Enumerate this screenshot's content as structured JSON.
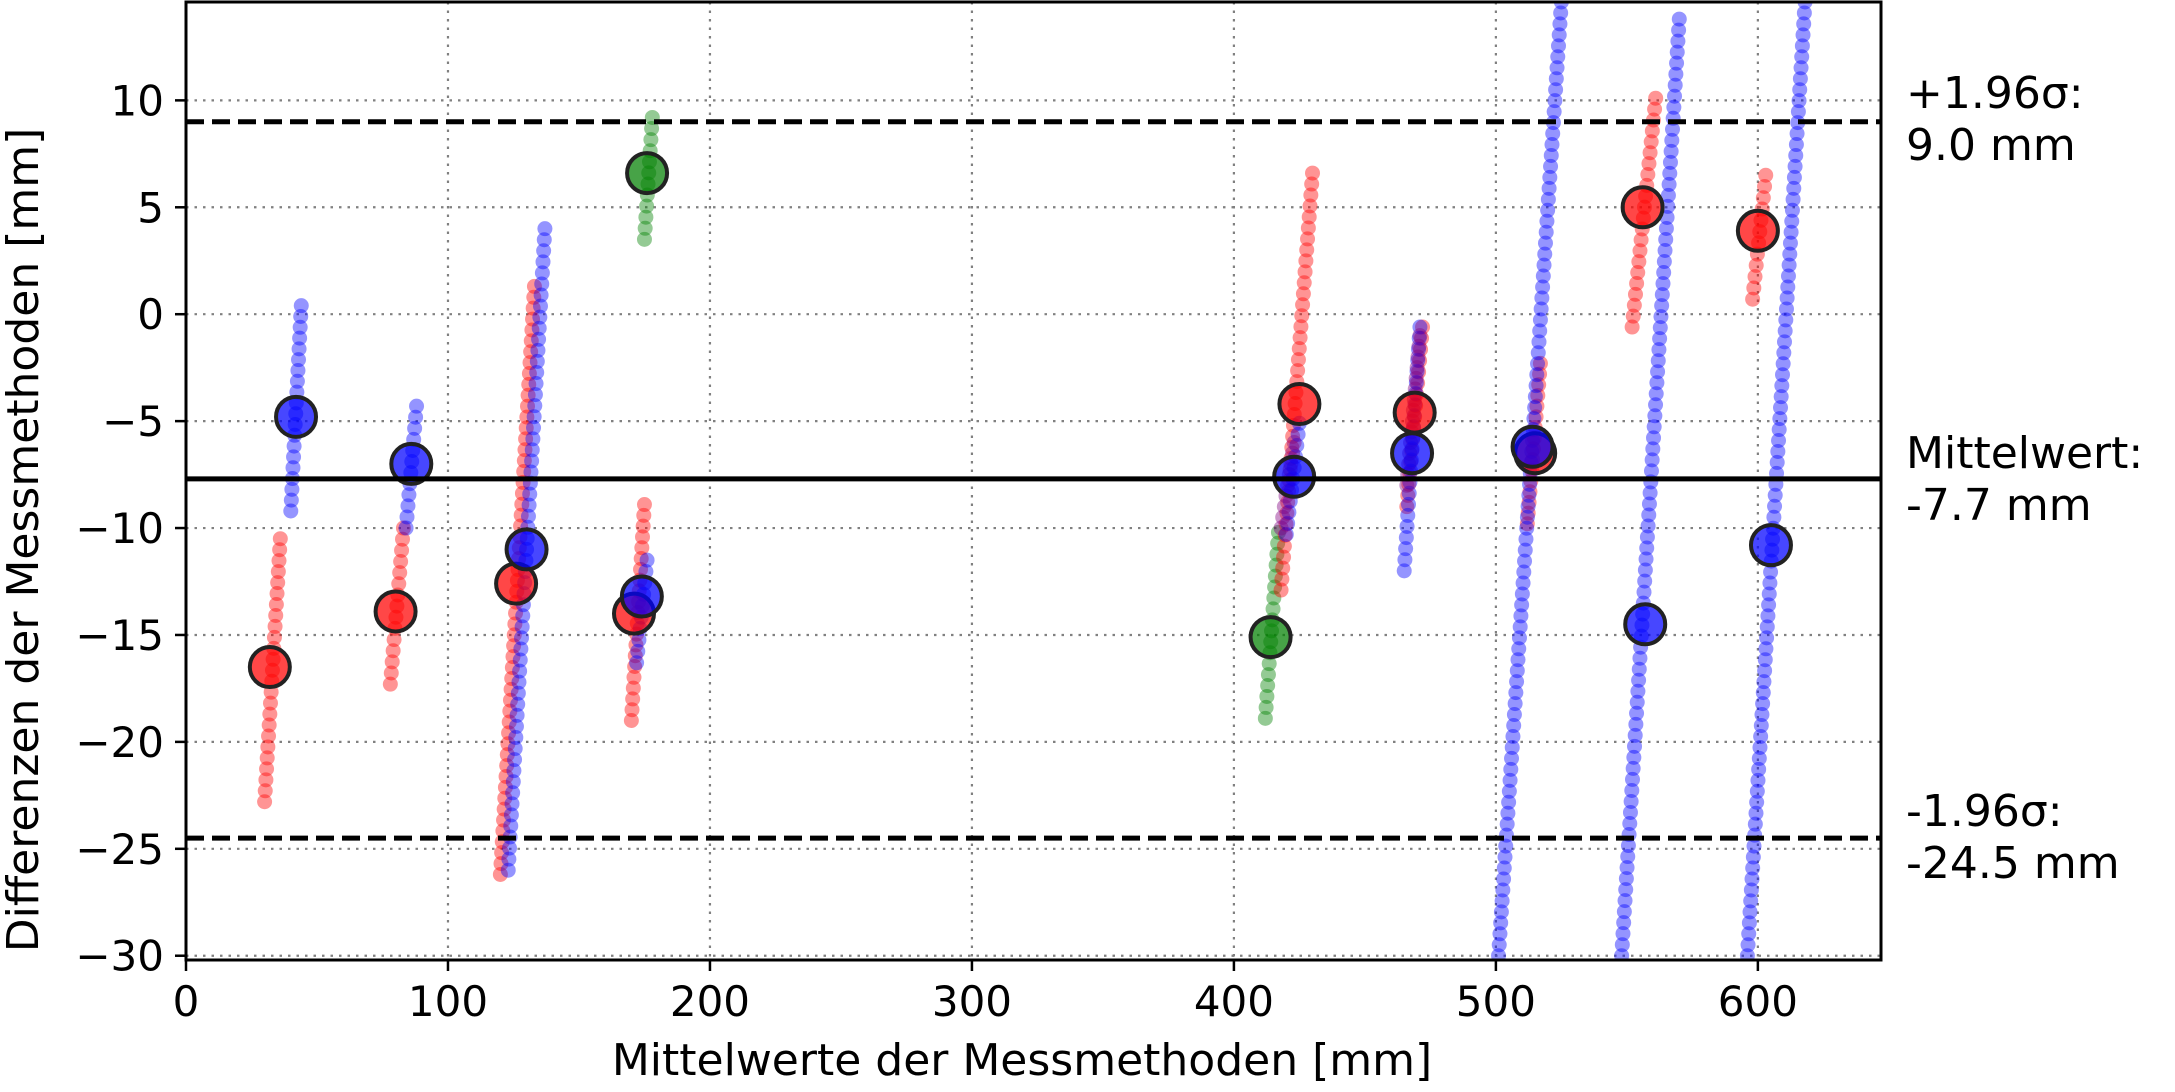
{
  "chart_data": {
    "type": "scatter",
    "title": "",
    "xlabel": "Mittelwerte der Messmethoden [mm]",
    "ylabel": "Differenzen der Messmethoden [mm]",
    "xlim": [
      0,
      647
    ],
    "ylim": [
      -30.2,
      14.6
    ],
    "x_ticks": [
      0,
      100,
      200,
      300,
      400,
      500,
      600
    ],
    "y_ticks": [
      10,
      5,
      0,
      -5,
      -10,
      -15,
      -20,
      -25,
      -30
    ],
    "grid": true,
    "legend": "none",
    "colors": {
      "red": "#ff0000",
      "blue": "#0000ff",
      "green": "#008000",
      "purple": "#800080",
      "line": "#000000",
      "grid": "#808080"
    },
    "reference_lines": {
      "upper": {
        "value": 9.0,
        "label_line1": "+1.96σ:",
        "label_line2": "9.0 mm",
        "style": "dashed"
      },
      "mean": {
        "value": -7.7,
        "label_line1": "Mittelwert:",
        "label_line2": "-7.7 mm",
        "style": "solid"
      },
      "lower": {
        "value": -24.5,
        "label_line1": "-1.96σ:",
        "label_line2": "-24.5 mm",
        "style": "dashed"
      }
    },
    "means": [
      {
        "color": "red",
        "x": 32,
        "y": -16.5
      },
      {
        "color": "blue",
        "x": 42,
        "y": -4.8
      },
      {
        "color": "red",
        "x": 80,
        "y": -13.9
      },
      {
        "color": "blue",
        "x": 86,
        "y": -7.0
      },
      {
        "color": "red",
        "x": 126,
        "y": -12.6
      },
      {
        "color": "blue",
        "x": 130,
        "y": -11.0
      },
      {
        "color": "green",
        "x": 176,
        "y": 6.6
      },
      {
        "color": "red",
        "x": 171,
        "y": -14.0
      },
      {
        "color": "blue",
        "x": 174,
        "y": -13.2
      },
      {
        "color": "green",
        "x": 414,
        "y": -15.1
      },
      {
        "color": "red",
        "x": 425,
        "y": -4.2
      },
      {
        "color": "blue",
        "x": 423,
        "y": -7.6
      },
      {
        "color": "red",
        "x": 469,
        "y": -4.6
      },
      {
        "color": "blue",
        "x": 468,
        "y": -6.5
      },
      {
        "color": "red",
        "x": 515,
        "y": -6.5
      },
      {
        "color": "blue",
        "x": 514,
        "y": -6.2
      },
      {
        "color": "red",
        "x": 556,
        "y": 5.0
      },
      {
        "color": "blue",
        "x": 557,
        "y": -14.5
      },
      {
        "color": "red",
        "x": 600,
        "y": 3.9
      },
      {
        "color": "blue",
        "x": 605,
        "y": -10.8
      }
    ],
    "trails": [
      {
        "color": "red",
        "x1": 30,
        "y1": -22.8,
        "x2": 36,
        "y2": -10.5
      },
      {
        "color": "blue",
        "x1": 40,
        "y1": -9.2,
        "x2": 44,
        "y2": 0.4
      },
      {
        "color": "red",
        "x1": 78,
        "y1": -17.3,
        "x2": 83,
        "y2": -10.0
      },
      {
        "color": "blue",
        "x1": 84,
        "y1": -10.0,
        "x2": 88,
        "y2": -4.3
      },
      {
        "color": "red",
        "x1": 120,
        "y1": -26.2,
        "x2": 133,
        "y2": 1.3
      },
      {
        "color": "blue",
        "x1": 123,
        "y1": -26.0,
        "x2": 137,
        "y2": 4.0
      },
      {
        "color": "red",
        "x1": 170,
        "y1": -19.0,
        "x2": 175,
        "y2": -8.9
      },
      {
        "color": "blue",
        "x1": 172,
        "y1": -16.3,
        "x2": 176,
        "y2": -11.5
      },
      {
        "color": "green",
        "x1": 175,
        "y1": 3.5,
        "x2": 178,
        "y2": 9.2
      },
      {
        "color": "green",
        "x1": 412,
        "y1": -18.9,
        "x2": 417,
        "y2": -10.2
      },
      {
        "color": "red",
        "x1": 418,
        "y1": -12.9,
        "x2": 430,
        "y2": 6.6
      },
      {
        "color": "blue",
        "x1": 420,
        "y1": -10.3,
        "x2": 425,
        "y2": -5.1
      },
      {
        "color": "purple",
        "x1": 418,
        "y1": -10.0,
        "x2": 423,
        "y2": -6.0
      },
      {
        "color": "red",
        "x1": 466,
        "y1": -9.0,
        "x2": 472,
        "y2": -0.6
      },
      {
        "color": "blue",
        "x1": 465,
        "y1": -12.0,
        "x2": 471,
        "y2": -0.6
      },
      {
        "color": "purple",
        "x1": 466,
        "y1": -8.0,
        "x2": 471,
        "y2": -1.0
      },
      {
        "color": "red",
        "x1": 512,
        "y1": -9.8,
        "x2": 517,
        "y2": -2.3
      },
      {
        "color": "blue",
        "x1": 501,
        "y1": -30.0,
        "x2": 525,
        "y2": 14.6
      },
      {
        "color": "red",
        "x1": 552,
        "y1": -0.6,
        "x2": 561,
        "y2": 10.1
      },
      {
        "color": "blue",
        "x1": 548,
        "y1": -30.0,
        "x2": 570,
        "y2": 13.8
      },
      {
        "color": "red",
        "x1": 598,
        "y1": 0.7,
        "x2": 603,
        "y2": 6.5
      },
      {
        "color": "blue",
        "x1": 596,
        "y1": -30.0,
        "x2": 618,
        "y2": 14.6
      }
    ]
  }
}
